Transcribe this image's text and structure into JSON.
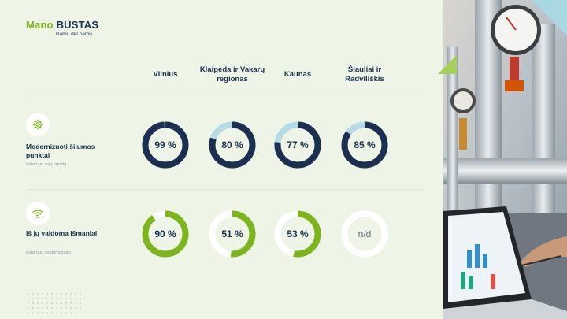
{
  "brand": {
    "name_part1": "Mano",
    "name_part2": "BŪSTAS",
    "tagline": "Ramu dėl namų"
  },
  "columns": [
    "Vilnius",
    "Klaipėda ir Vakarų regionas",
    "Kaunas",
    "Šiauliai ir Radviliškis"
  ],
  "rows": [
    {
      "icon": "gear-icon",
      "label": "Modernizuoti šilumos punktai",
      "sublabel": "dalis nuo visų punktų"
    },
    {
      "icon": "wifi-icon",
      "label": "Iš jų valdoma išmaniai",
      "sublabel": "dalis nuo modernizuotų"
    }
  ],
  "chart_data": {
    "type": "donut-grid",
    "categories": [
      "Vilnius",
      "Klaipėda ir Vakarų regionas",
      "Kaunas",
      "Šiauliai ir Radviliškis"
    ],
    "series": [
      {
        "name": "Modernizuoti šilumos punktai",
        "values": [
          99,
          80,
          77,
          85
        ],
        "labels": [
          "99 %",
          "80 %",
          "77 %",
          "85 %"
        ],
        "color": "#1b2f50",
        "track": "#b5dce6"
      },
      {
        "name": "Iš jų valdoma išmaniai",
        "values": [
          90,
          51,
          53,
          null
        ],
        "labels": [
          "90 %",
          "51 %",
          "53 %",
          "n/d"
        ],
        "color": "#7cb51e",
        "track": "#ffffff"
      }
    ],
    "unit": "%",
    "range": [
      0,
      100
    ]
  },
  "colors": {
    "navy": "#1b2f50",
    "green": "#7cb51e",
    "light_blue": "#b5dce6",
    "background": "#eef5e6"
  }
}
